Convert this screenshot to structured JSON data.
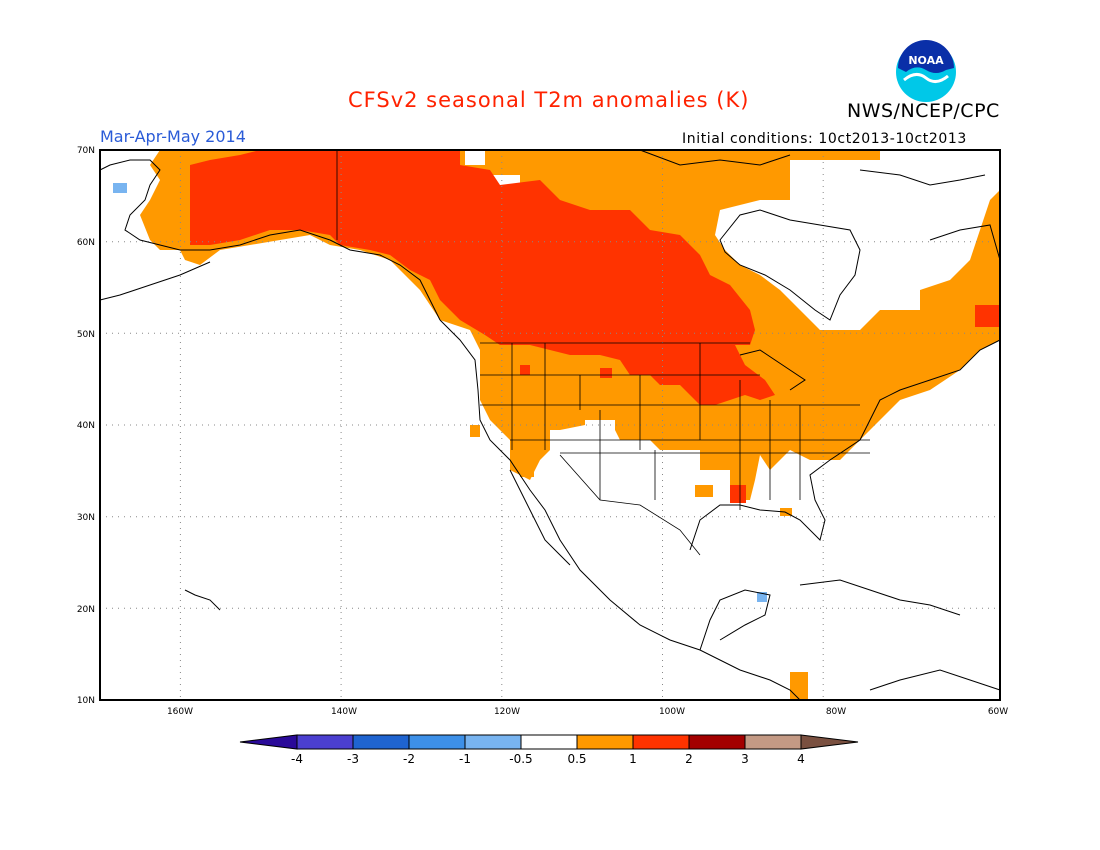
{
  "header": {
    "title": "CFSv2 seasonal T2m anomalies (K)",
    "agency": "NWS/NCEP/CPC",
    "season": "Mar-Apr-May 2014",
    "initial_conditions": "Initial conditions: 10ct2013-10ct2013",
    "logo_text": "NOAA"
  },
  "colors": {
    "title": "#ff2200",
    "season": "#2a5bd7",
    "land_outline": "#000000",
    "grid": "#888888",
    "anomaly_0_5_to_1": "#ff9900",
    "anomaly_1_to_2": "#ff3300",
    "anomaly_neg_0_5_to_neg_1": "#78b4f0"
  },
  "map": {
    "projection": "cylindrical equidistant",
    "lon_range": [
      -172,
      -60
    ],
    "lat_range": [
      10,
      70
    ],
    "lat_labels": [
      "70N",
      "60N",
      "50N",
      "40N",
      "30N",
      "20N",
      "10N"
    ],
    "lon_labels": [
      "160W",
      "140W",
      "120W",
      "100W",
      "80W",
      "60W"
    ],
    "grid": "dotted"
  },
  "colorbar": {
    "labels": [
      "-4",
      "-3",
      "-2",
      "-1",
      "-0.5",
      "0.5",
      "1",
      "2",
      "3",
      "4"
    ],
    "colors": [
      "#2a0a99",
      "#4b3fd0",
      "#1f64d0",
      "#3d90e8",
      "#78b4f0",
      "#ffffff",
      "#ff9900",
      "#ff3300",
      "#a30000",
      "#c49a85",
      "#7a5040"
    ]
  }
}
